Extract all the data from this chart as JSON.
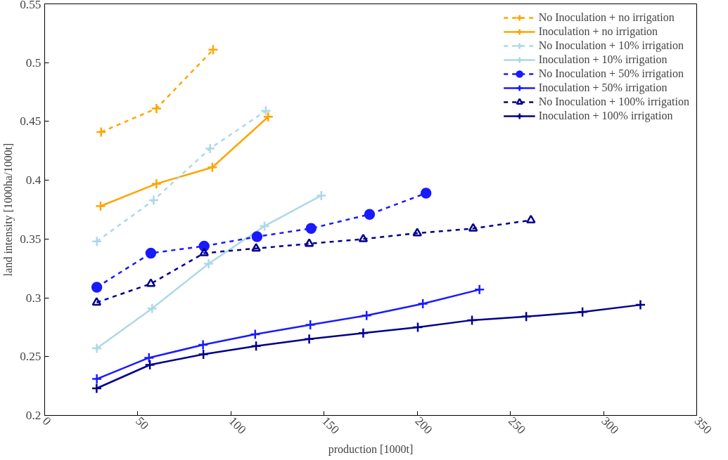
{
  "chart_data": {
    "type": "line",
    "xlabel": "production [1000t]",
    "ylabel": "land intensity [1000ha/1000t]",
    "xlim": [
      0,
      350
    ],
    "xticks": [
      0,
      50,
      100,
      150,
      200,
      250,
      300,
      350
    ],
    "ylim": [
      0.2,
      0.55
    ],
    "yticks": [
      0.2,
      0.25,
      0.3,
      0.35,
      0.4,
      0.45,
      0.5,
      0.55
    ],
    "grid": false,
    "legend": "top right",
    "series": [
      {
        "name": "No Inoculation + no irrigation",
        "color": "#ffa500",
        "line_style": "dashed",
        "marker": "cross",
        "x": [
          30.3,
          60,
          90.4
        ],
        "values": [
          0.441,
          0.461,
          0.511
        ]
      },
      {
        "name": "Inoculation + no irrigation",
        "color": "#ffa500",
        "line_style": "solid",
        "marker": "cross",
        "x": [
          30,
          60,
          90,
          120
        ],
        "values": [
          0.378,
          0.397,
          0.411,
          0.454
        ]
      },
      {
        "name": "No Inoculation + 10% irrigation",
        "color": "#add8e6",
        "line_style": "dashed",
        "marker": "cross",
        "x": [
          28,
          58.5,
          88.8,
          118.7
        ],
        "values": [
          0.348,
          0.383,
          0.427,
          0.459
        ]
      },
      {
        "name": "Inoculation + 10% irrigation",
        "color": "#add8e6",
        "line_style": "solid",
        "marker": "cross",
        "x": [
          28,
          57.7,
          88,
          118,
          148.5
        ],
        "values": [
          0.257,
          0.291,
          0.329,
          0.361,
          0.387
        ]
      },
      {
        "name": "No Inoculation + 50% irrigation",
        "color": "#1a1aff",
        "line_style": "dashed",
        "marker": "circle",
        "x": [
          28,
          57,
          85.6,
          114,
          143,
          174.4,
          204.7
        ],
        "values": [
          0.309,
          0.338,
          0.344,
          0.352,
          0.359,
          0.371,
          0.389
        ]
      },
      {
        "name": "Inoculation + 50% irrigation",
        "color": "#1a1aff",
        "line_style": "solid",
        "marker": "cross",
        "x": [
          28,
          56,
          85,
          113,
          142.6,
          172.8,
          203,
          233.4
        ],
        "values": [
          0.231,
          0.249,
          0.26,
          0.269,
          0.277,
          0.285,
          0.295,
          0.307
        ]
      },
      {
        "name": "No Inoculation + 100% irrigation",
        "color": "#00008b",
        "line_style": "dashed",
        "marker": "triangle",
        "x": [
          27.9,
          57,
          85.6,
          113.5,
          142,
          171,
          200,
          230,
          261
        ],
        "values": [
          0.296,
          0.312,
          0.338,
          0.342,
          0.346,
          0.35,
          0.355,
          0.359,
          0.366
        ]
      },
      {
        "name": "Inoculation + 100% irrigation",
        "color": "#00008b",
        "line_style": "solid",
        "marker": "cross",
        "x": [
          27.9,
          56.5,
          85.2,
          113.5,
          142,
          171,
          200.3,
          229.4,
          258.5,
          288.7,
          319.8
        ],
        "values": [
          0.223,
          0.243,
          0.252,
          0.259,
          0.265,
          0.27,
          0.275,
          0.281,
          0.284,
          0.288,
          0.294
        ]
      }
    ]
  }
}
